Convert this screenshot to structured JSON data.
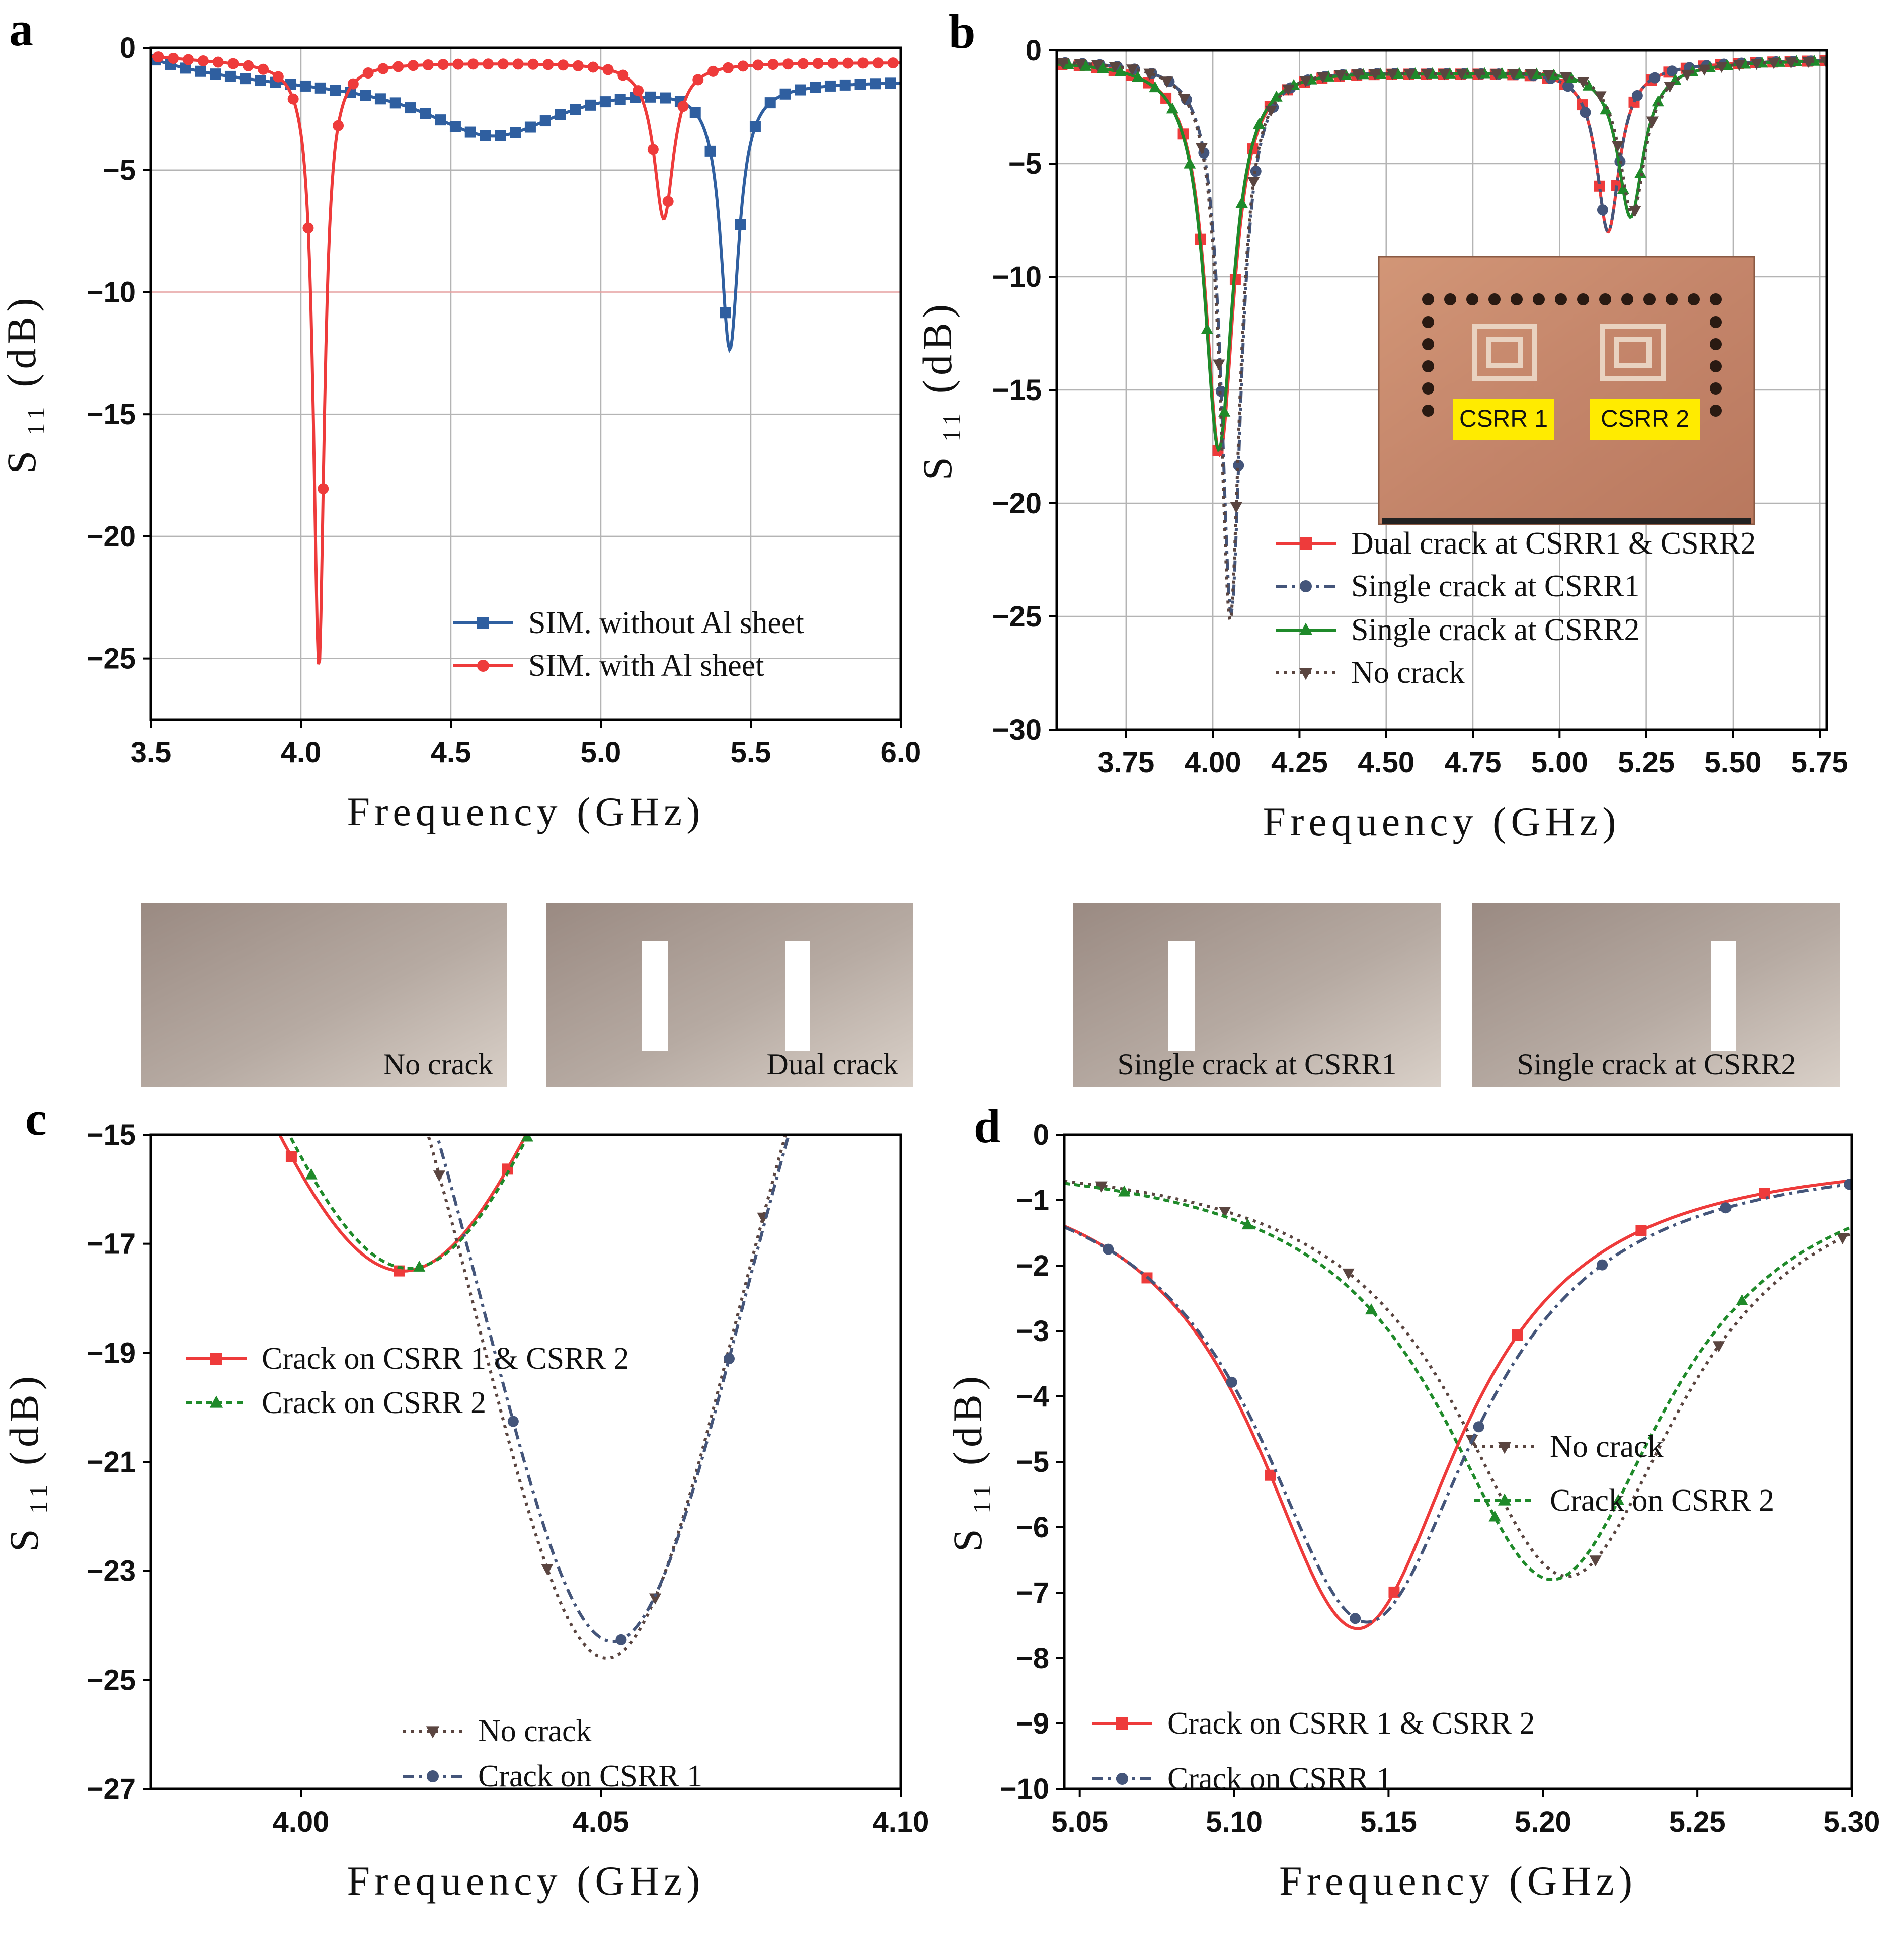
{
  "colors": {
    "blue": "#2f5fa0",
    "red": "#ee3b3b",
    "slate": "#44557a",
    "green": "#1f8a2a",
    "brown": "#5a4540",
    "copper": "#c7876a",
    "plate": "#a89890",
    "tag": "#ffeb00"
  },
  "captions": {
    "no_crack": "No crack",
    "dual_crack": "Dual crack",
    "single1": "Single crack at CSRR1",
    "single2": "Single crack at CSRR2"
  },
  "inset_b": {
    "label1": "CSRR 1",
    "label2": "CSRR 2"
  },
  "chart_data": [
    {
      "id": "a",
      "panel_label": "a",
      "type": "line",
      "xlabel": "Frequency (GHz)",
      "ylabel_main": "S",
      "ylabel_sub": "11",
      "ylabel_unit": "(dB)",
      "xlim": [
        3.5,
        6.0
      ],
      "ylim": [
        -27.5,
        0
      ],
      "xticks": [
        3.5,
        4.0,
        4.5,
        5.0,
        5.5,
        6.0
      ],
      "xtick_labels": [
        "3.5",
        "4.0",
        "4.5",
        "5.0",
        "5.5",
        "6.0"
      ],
      "yticks": [
        0,
        -5,
        -10,
        -15,
        -20,
        -25
      ],
      "ytick_labels": [
        "0",
        "−5",
        "−10",
        "−15",
        "−20",
        "−25"
      ],
      "grid": true,
      "legend_position": "bottom-right",
      "series": [
        {
          "name": "SIM. without Al sheet",
          "color": "#2f5fa0",
          "marker": "square",
          "dash": "",
          "resonances": [
            {
              "f0": 4.64,
              "depth": 2.3,
              "w": 0.28
            },
            {
              "f0": 5.43,
              "depth": 10.8,
              "w": 0.037
            }
          ],
          "baseline": {
            "start_f": 3.5,
            "start_v": -0.3,
            "rise_f": 4.0,
            "level": -1.3,
            "tail": -0.8
          },
          "marker_step": 0.05
        },
        {
          "name": "SIM. with Al sheet",
          "color": "#ee3b3b",
          "marker": "circle",
          "dash": "",
          "resonances": [
            {
              "f0": 4.06,
              "depth": 24.8,
              "w": 0.022
            },
            {
              "f0": 5.21,
              "depth": 6.4,
              "w": 0.04
            }
          ],
          "baseline": {
            "start_f": 3.5,
            "start_v": -0.3,
            "rise_f": 4.06,
            "level": -0.6,
            "tail": -0.6
          },
          "marker_step": 0.05
        }
      ]
    },
    {
      "id": "b",
      "panel_label": "b",
      "type": "line",
      "xlabel": "Frequency (GHz)",
      "ylabel_main": "S",
      "ylabel_sub": "11",
      "ylabel_unit": "(dB)",
      "xlim": [
        3.55,
        5.77
      ],
      "ylim": [
        -30,
        0
      ],
      "xticks": [
        3.75,
        4.0,
        4.25,
        4.5,
        4.75,
        5.0,
        5.25,
        5.5,
        5.75
      ],
      "xtick_labels": [
        "3.75",
        "4.00",
        "4.25",
        "4.50",
        "4.75",
        "5.00",
        "5.25",
        "5.50",
        "5.75"
      ],
      "yticks": [
        0,
        -5,
        -10,
        -15,
        -20,
        -25,
        -30
      ],
      "ytick_labels": [
        "0",
        "−5",
        "−10",
        "−15",
        "−20",
        "−25",
        "−30"
      ],
      "grid": true,
      "legend_position": "bottom-center",
      "series": [
        {
          "name": "Dual crack at CSRR1 & CSRR2",
          "color": "#ee3b3b",
          "marker": "square",
          "dash": "",
          "resonances": [
            {
              "f0": 4.02,
              "depth": 17.3,
              "w": 0.05
            },
            {
              "f0": 5.14,
              "depth": 7.3,
              "w": 0.04
            }
          ]
        },
        {
          "name": "Single crack at CSRR1",
          "color": "#44557a",
          "marker": "circle",
          "dash": "22,10,6,10",
          "resonances": [
            {
              "f0": 4.053,
              "depth": 24.3,
              "w": 0.035
            },
            {
              "f0": 5.14,
              "depth": 7.3,
              "w": 0.04
            }
          ]
        },
        {
          "name": "Single crack at CSRR2",
          "color": "#1f8a2a",
          "marker": "triangle",
          "dash": "",
          "resonances": [
            {
              "f0": 4.017,
              "depth": 17.1,
              "w": 0.05
            },
            {
              "f0": 5.205,
              "depth": 6.7,
              "w": 0.045
            }
          ]
        },
        {
          "name": "No crack",
          "color": "#5a4540",
          "marker": "triangle-down",
          "dash": "6,10",
          "resonances": [
            {
              "f0": 4.05,
              "depth": 24.6,
              "w": 0.035
            },
            {
              "f0": 5.21,
              "depth": 6.6,
              "w": 0.045
            }
          ]
        }
      ]
    },
    {
      "id": "c",
      "panel_label": "c",
      "type": "line",
      "xlabel": "Frequency (GHz)",
      "ylabel_main": "S",
      "ylabel_sub": "11",
      "ylabel_unit": "(dB)",
      "xlim": [
        3.975,
        4.1
      ],
      "ylim": [
        -27,
        -15
      ],
      "xticks": [
        4.0,
        4.05,
        4.1
      ],
      "xtick_labels": [
        "4.00",
        "4.05",
        "4.10"
      ],
      "yticks": [
        -15,
        -17,
        -19,
        -21,
        -23,
        -25,
        -27
      ],
      "ytick_labels": [
        "−15",
        "−17",
        "−19",
        "−21",
        "−23",
        "−25",
        "−27"
      ],
      "grid": false,
      "legend_position": "left and bottom-center",
      "series": [
        {
          "name": "Crack on CSRR 1 & CSRR 2",
          "color": "#ee3b3b",
          "marker": "square",
          "dash": "",
          "resonances": [
            {
              "f0": 4.017,
              "depth": 17.3,
              "w": 0.05
            }
          ],
          "legend_group": 1
        },
        {
          "name": "Crack on CSRR 2",
          "color": "#1f8a2a",
          "marker": "triangle",
          "dash": "12,8",
          "resonances": [
            {
              "f0": 4.018,
              "depth": 17.25,
              "w": 0.049
            }
          ],
          "legend_group": 1
        },
        {
          "name": "No crack",
          "color": "#5a4540",
          "marker": "triangle-down",
          "dash": "6,10",
          "resonances": [
            {
              "f0": 4.051,
              "depth": 24.4,
              "w": 0.037
            }
          ],
          "legend_group": 2
        },
        {
          "name": "Crack on CSRR 1",
          "color": "#44557a",
          "marker": "circle",
          "dash": "22,10,6,10",
          "resonances": [
            {
              "f0": 4.052,
              "depth": 24.1,
              "w": 0.037
            }
          ],
          "legend_group": 2
        }
      ]
    },
    {
      "id": "d",
      "panel_label": "d",
      "type": "line",
      "xlabel": "Frequency (GHz)",
      "ylabel_main": "S",
      "ylabel_sub": "11",
      "ylabel_unit": "(dB)",
      "xlim": [
        5.045,
        5.3
      ],
      "ylim": [
        -10,
        0
      ],
      "xticks": [
        5.05,
        5.1,
        5.15,
        5.2,
        5.25,
        5.3
      ],
      "xtick_labels": [
        "5.05",
        "5.10",
        "5.15",
        "5.20",
        "5.25",
        "5.30"
      ],
      "yticks": [
        0,
        -1,
        -2,
        -3,
        -4,
        -5,
        -6,
        -7,
        -8,
        -9,
        -10
      ],
      "ytick_labels": [
        "0",
        "−1",
        "−2",
        "−3",
        "−4",
        "−5",
        "−6",
        "−7",
        "−8",
        "−9",
        "−10"
      ],
      "grid": false,
      "legend_position": "right-center and bottom-left",
      "series": [
        {
          "name": "No crack",
          "color": "#5a4540",
          "marker": "triangle-down",
          "dash": "6,10",
          "resonances": [
            {
              "f0": 5.208,
              "depth": 6.5,
              "w": 0.045
            }
          ],
          "legend_group": 1
        },
        {
          "name": "Crack on CSRR 2",
          "color": "#1f8a2a",
          "marker": "triangle",
          "dash": "12,8",
          "resonances": [
            {
              "f0": 5.203,
              "depth": 6.55,
              "w": 0.045
            }
          ],
          "legend_group": 1
        },
        {
          "name": "Crack on CSRR 1 & CSRR 2",
          "color": "#ee3b3b",
          "marker": "square",
          "dash": "",
          "resonances": [
            {
              "f0": 5.14,
              "depth": 7.3,
              "w": 0.041
            }
          ],
          "legend_group": 2
        },
        {
          "name": "Crack on CSRR 1",
          "color": "#44557a",
          "marker": "circle",
          "dash": "22,10,6,10",
          "resonances": [
            {
              "f0": 5.143,
              "depth": 7.2,
              "w": 0.043
            }
          ],
          "legend_group": 2
        }
      ]
    }
  ]
}
